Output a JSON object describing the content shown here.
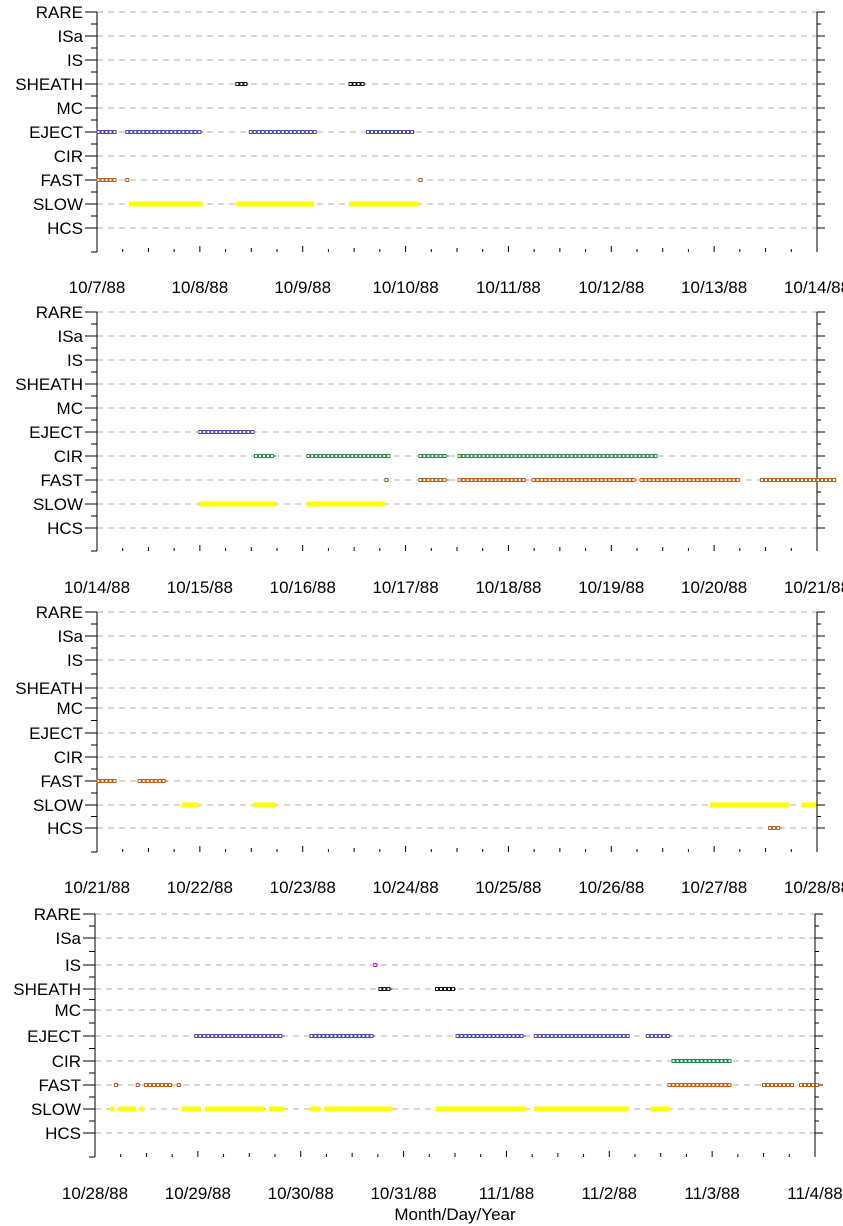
{
  "chart_data": [
    {
      "type": "scatter",
      "categories": [
        "RARE",
        "ISa",
        "IS",
        "SHEATH",
        "MC",
        "EJECT",
        "CIR",
        "FAST",
        "SLOW",
        "HCS"
      ],
      "x_tick_labels": [
        "10/7/88",
        "10/8/88",
        "10/9/88",
        "10/10/88",
        "10/11/88",
        "10/12/88",
        "10/13/88",
        "10/14/88"
      ],
      "xlim": [
        0,
        7
      ],
      "grid": true,
      "series": [
        {
          "category": "SHEATH",
          "color": "#000000",
          "segments": [
            [
              1.35,
              1.47
            ],
            [
              2.45,
              2.61
            ]
          ]
        },
        {
          "category": "EJECT",
          "color": "#3a3aa8",
          "segments": [
            [
              0,
              0.19
            ],
            [
              0.28,
              1.03
            ],
            [
              1.48,
              2.13
            ],
            [
              2.62,
              3.09
            ]
          ]
        },
        {
          "category": "FAST",
          "color": "#b45309",
          "segments": [
            [
              0,
              0.19
            ],
            [
              0.28,
              0.31
            ],
            [
              3.13,
              3.17
            ]
          ]
        },
        {
          "category": "SLOW",
          "color": "#ffff00",
          "bar": true,
          "segments": [
            [
              0.31,
              1.03
            ],
            [
              1.35,
              2.11
            ],
            [
              2.45,
              3.13
            ]
          ]
        }
      ]
    },
    {
      "type": "scatter",
      "categories": [
        "RARE",
        "ISa",
        "IS",
        "SHEATH",
        "MC",
        "EJECT",
        "CIR",
        "FAST",
        "SLOW",
        "HCS"
      ],
      "x_tick_labels": [
        "10/14/88",
        "10/15/88",
        "10/16/88",
        "10/17/88",
        "10/18/88",
        "10/19/88",
        "10/20/88",
        "10/21/88"
      ],
      "xlim": [
        0,
        7
      ],
      "grid": true,
      "series": [
        {
          "category": "EJECT",
          "color": "#3a3aa8",
          "segments": [
            [
              0.99,
              1.53
            ]
          ]
        },
        {
          "category": "CIR",
          "color": "#16803c",
          "segments": [
            [
              1.53,
              1.74
            ],
            [
              2.04,
              2.84
            ],
            [
              3.13,
              3.42
            ],
            [
              3.51,
              5.44
            ]
          ]
        },
        {
          "category": "FAST",
          "color": "#b45309",
          "segments": [
            [
              2.8,
              2.84
            ],
            [
              3.13,
              3.42
            ],
            [
              3.51,
              4.18
            ],
            [
              4.23,
              5.24
            ],
            [
              5.28,
              6.25
            ],
            [
              6.45,
              7.19
            ]
          ]
        },
        {
          "category": "SLOW",
          "color": "#ffff00",
          "bar": true,
          "segments": [
            [
              0.99,
              1.74
            ],
            [
              2.04,
              2.8
            ]
          ]
        }
      ]
    },
    {
      "type": "scatter",
      "categories": [
        "RARE",
        "ISa",
        "IS",
        "SHEATH",
        "MC",
        "EJECT",
        "CIR",
        "FAST",
        "SLOW",
        "HCS"
      ],
      "x_tick_labels": [
        "10/21/88",
        "10/22/88",
        "10/23/88",
        "10/24/88",
        "10/25/88",
        "10/26/88",
        "10/27/88",
        "10/28/88"
      ],
      "xlim": [
        0,
        7
      ],
      "grid": true,
      "series": [
        {
          "category": "FAST",
          "color": "#b45309",
          "segments": [
            [
              0,
              0.19
            ],
            [
              0.4,
              0.69
            ]
          ]
        },
        {
          "category": "SLOW",
          "color": "#ffff00",
          "bar": true,
          "segments": [
            [
              0.82,
              0.99
            ],
            [
              1.52,
              1.74
            ],
            [
              5.96,
              6.73
            ],
            [
              6.85,
              6.99
            ]
          ]
        },
        {
          "category": "HCS",
          "color": "#b45309",
          "segments": [
            [
              6.53,
              6.66
            ]
          ]
        }
      ]
    },
    {
      "type": "scatter",
      "categories": [
        "RARE",
        "ISa",
        "IS",
        "SHEATH",
        "MC",
        "EJECT",
        "CIR",
        "FAST",
        "SLOW",
        "HCS"
      ],
      "x_tick_labels": [
        "10/28/88",
        "10/29/88",
        "10/30/88",
        "10/31/88",
        "11/1/88",
        "11/2/88",
        "11/3/88",
        "11/4/88"
      ],
      "xlim": [
        0,
        7
      ],
      "xlabel": "Month/Day/Year",
      "grid": true,
      "series": [
        {
          "category": "IS",
          "color": "#cc00cc",
          "segments": [
            [
              2.71,
              2.75
            ]
          ]
        },
        {
          "category": "SHEATH",
          "color": "#000000",
          "segments": [
            [
              2.76,
              2.89
            ],
            [
              3.31,
              3.51
            ]
          ]
        },
        {
          "category": "EJECT",
          "color": "#3a3aa8",
          "segments": [
            [
              0.97,
              1.84
            ],
            [
              2.09,
              2.72
            ],
            [
              3.51,
              4.19
            ],
            [
              4.27,
              5.19
            ],
            [
              5.36,
              5.61
            ]
          ]
        },
        {
          "category": "CIR",
          "color": "#16803c",
          "segments": [
            [
              5.61,
              6.19
            ]
          ]
        },
        {
          "category": "FAST",
          "color": "#b45309",
          "segments": [
            [
              0.19,
              0.23
            ],
            [
              0.4,
              0.44
            ],
            [
              0.48,
              0.76
            ],
            [
              0.8,
              0.84
            ],
            [
              5.57,
              6.19
            ],
            [
              6.49,
              6.79
            ],
            [
              6.85,
              7.03
            ]
          ]
        },
        {
          "category": "SLOW",
          "color": "#ffff00",
          "bar": true,
          "segments": [
            [
              0.15,
              0.19
            ],
            [
              0.23,
              0.4
            ],
            [
              0.44,
              0.48
            ],
            [
              0.84,
              1.03
            ],
            [
              1.07,
              1.65
            ],
            [
              1.69,
              1.84
            ],
            [
              2.09,
              2.19
            ],
            [
              2.23,
              2.89
            ],
            [
              3.31,
              4.19
            ],
            [
              4.27,
              5.19
            ],
            [
              5.4,
              5.59
            ]
          ]
        }
      ]
    }
  ]
}
